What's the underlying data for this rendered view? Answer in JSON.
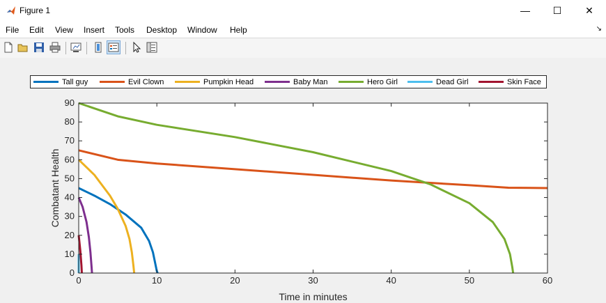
{
  "window": {
    "title": "Figure 1",
    "controls": {
      "minimize": "—",
      "maximize": "☐",
      "close": "✕"
    }
  },
  "menu": {
    "items": [
      "File",
      "Edit",
      "View",
      "Insert",
      "Tools",
      "Desktop",
      "Window",
      "Help"
    ],
    "dock_arrow": "↘"
  },
  "toolbar": {
    "buttons": [
      "new-figure-icon",
      "open-file-icon",
      "save-icon",
      "print-icon",
      "link-plot-icon",
      "colorbar-icon",
      "legend-icon",
      "edit-plot-arrow-icon",
      "property-inspector-icon"
    ],
    "active": "legend-icon"
  },
  "chart_data": {
    "type": "line",
    "title": "",
    "xlabel": "Time in minutes",
    "ylabel": "Combatant Health",
    "xlim": [
      0,
      60
    ],
    "ylim": [
      0,
      90
    ],
    "xticks": [
      0,
      10,
      20,
      30,
      40,
      50,
      60
    ],
    "yticks": [
      0,
      10,
      20,
      30,
      40,
      50,
      60,
      70,
      80,
      90
    ],
    "grid": false,
    "legend_location": "north-outside",
    "series": [
      {
        "name": "Tall guy",
        "color": "#0072BD",
        "x": [
          0,
          2,
          4,
          6,
          8,
          9,
          9.5,
          9.8,
          10,
          10.1
        ],
        "y": [
          45,
          41,
          36.5,
          31,
          24,
          17,
          11,
          5,
          1,
          0
        ]
      },
      {
        "name": "Evil Clown",
        "color": "#D95319",
        "x": [
          0,
          5,
          10,
          20,
          30,
          40,
          50,
          55,
          60
        ],
        "y": [
          65,
          60,
          58,
          55,
          52,
          49,
          46.5,
          45.2,
          45
        ]
      },
      {
        "name": "Pumpkin Head",
        "color": "#EDB120",
        "x": [
          0,
          2,
          4,
          5,
          6,
          6.5,
          6.8,
          7,
          7.1
        ],
        "y": [
          60,
          52,
          41,
          34,
          25,
          18,
          11,
          4,
          0
        ]
      },
      {
        "name": "Baby Man",
        "color": "#7E2F8E",
        "x": [
          0,
          0.5,
          1,
          1.3,
          1.5,
          1.65,
          1.7
        ],
        "y": [
          40,
          35,
          27,
          19,
          11,
          3,
          0
        ]
      },
      {
        "name": "Hero Girl",
        "color": "#77AC30",
        "x": [
          0,
          5,
          10,
          20,
          30,
          40,
          45,
          50,
          53,
          54.5,
          55.2,
          55.5,
          55.6
        ],
        "y": [
          90,
          83,
          78.5,
          72,
          64,
          54,
          47,
          37,
          27,
          18,
          10,
          3,
          0
        ]
      },
      {
        "name": "Dead Girl",
        "color": "#4DBEEE",
        "x": [
          0,
          0
        ],
        "y": [
          10,
          0
        ]
      },
      {
        "name": "Skin Face",
        "color": "#A2142F",
        "x": [
          0,
          0.2,
          0.35,
          0.4
        ],
        "y": [
          20,
          12,
          4,
          0
        ]
      }
    ]
  }
}
